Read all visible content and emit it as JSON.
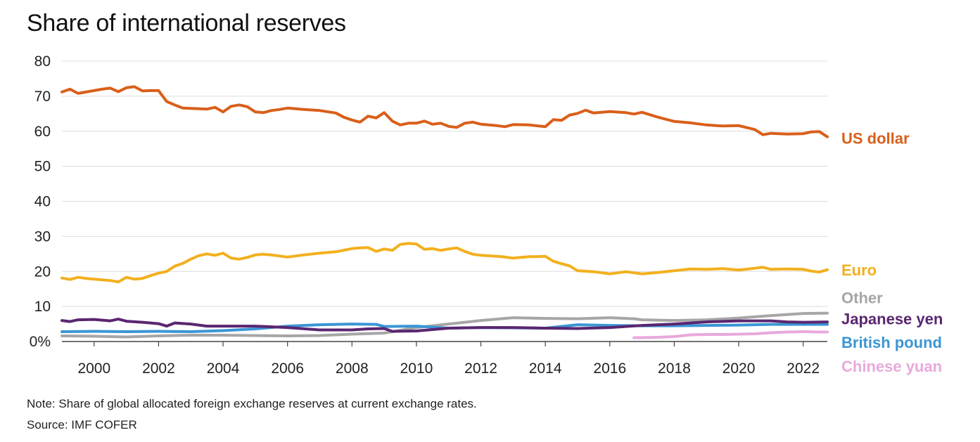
{
  "title": "Share of international reserves",
  "note": "Note: Share of global allocated foreign exchange reserves at current exchange rates.",
  "source": "Source: IMF COFER",
  "chart_data": {
    "type": "line",
    "title": "Share of international reserves",
    "xlabel": "",
    "ylabel": "",
    "xlim": [
      1999,
      2022.75
    ],
    "ylim": [
      0,
      80
    ],
    "grid": true,
    "x_ticks": [
      2000,
      2002,
      2004,
      2006,
      2008,
      2010,
      2012,
      2014,
      2016,
      2018,
      2020,
      2022
    ],
    "x_tick_labels": [
      "2000",
      "2002",
      "2004",
      "2006",
      "2008",
      "2010",
      "2012",
      "2014",
      "2016",
      "2018",
      "2020",
      "2022"
    ],
    "y_ticks": [
      0,
      10,
      20,
      30,
      40,
      50,
      60,
      70,
      80
    ],
    "y_tick_labels": [
      "0%",
      "10",
      "20",
      "30",
      "40",
      "50",
      "60",
      "70",
      "80"
    ],
    "legend": "direct labels at right end of lines",
    "series": [
      {
        "name": "US dollar",
        "color": "#d95f1a",
        "label_y": 58,
        "x": [
          1999,
          1999.25,
          1999.5,
          1999.75,
          2000,
          2000.25,
          2000.5,
          2000.75,
          2001,
          2001.25,
          2001.5,
          2001.75,
          2002,
          2002.25,
          2002.5,
          2002.75,
          2003,
          2003.5,
          2003.75,
          2004,
          2004.25,
          2004.5,
          2004.75,
          2005,
          2005.25,
          2005.5,
          2005.75,
          2006,
          2006.5,
          2007,
          2007.5,
          2007.75,
          2008,
          2008.25,
          2008.5,
          2008.75,
          2009,
          2009.25,
          2009.5,
          2009.75,
          2010,
          2010.25,
          2010.5,
          2010.75,
          2011,
          2011.25,
          2011.5,
          2011.75,
          2012,
          2012.5,
          2012.75,
          2013,
          2013.5,
          2014,
          2014.25,
          2014.5,
          2014.75,
          2015,
          2015.25,
          2015.5,
          2016,
          2016.5,
          2016.75,
          2017,
          2017.5,
          2018,
          2018.5,
          2019,
          2019.5,
          2020,
          2020.5,
          2020.75,
          2021,
          2021.5,
          2022,
          2022.25,
          2022.5,
          2022.75
        ],
        "values": [
          71.2,
          72.0,
          70.8,
          71.2,
          71.6,
          72.0,
          72.3,
          71.3,
          72.4,
          72.7,
          71.5,
          71.6,
          71.6,
          68.5,
          67.5,
          66.6,
          66.5,
          66.3,
          66.8,
          65.5,
          67.1,
          67.5,
          67.0,
          65.5,
          65.3,
          65.9,
          66.2,
          66.6,
          66.2,
          65.9,
          65.2,
          64.0,
          63.2,
          62.6,
          64.3,
          63.8,
          65.3,
          62.9,
          61.8,
          62.3,
          62.3,
          62.9,
          62.0,
          62.3,
          61.4,
          61.1,
          62.3,
          62.6,
          62.0,
          61.6,
          61.3,
          61.9,
          61.8,
          61.3,
          63.3,
          63.1,
          64.6,
          65.1,
          66.0,
          65.2,
          65.6,
          65.3,
          64.9,
          65.4,
          64.0,
          62.8,
          62.4,
          61.8,
          61.5,
          61.6,
          60.5,
          59.0,
          59.4,
          59.2,
          59.3,
          59.8,
          59.9,
          58.4
        ]
      },
      {
        "name": "Euro",
        "color": "#f2b01e",
        "label_y": 20.5,
        "x": [
          1999,
          1999.25,
          1999.5,
          1999.75,
          2000,
          2000.25,
          2000.5,
          2000.75,
          2001,
          2001.25,
          2001.5,
          2001.75,
          2002,
          2002.25,
          2002.5,
          2002.75,
          2003,
          2003.25,
          2003.5,
          2003.75,
          2004,
          2004.25,
          2004.5,
          2004.75,
          2005,
          2005.25,
          2005.5,
          2005.75,
          2006,
          2006.5,
          2007,
          2007.5,
          2008,
          2008.25,
          2008.5,
          2008.75,
          2009,
          2009.25,
          2009.5,
          2009.75,
          2010,
          2010.25,
          2010.5,
          2010.75,
          2011,
          2011.25,
          2011.5,
          2011.75,
          2012,
          2012.5,
          2012.75,
          2013,
          2013.5,
          2014,
          2014.25,
          2014.5,
          2014.75,
          2015,
          2015.5,
          2016,
          2016.5,
          2016.75,
          2017,
          2017.5,
          2018,
          2018.5,
          2019,
          2019.5,
          2020,
          2020.5,
          2020.75,
          2021,
          2021.5,
          2022,
          2022.25,
          2022.5,
          2022.75
        ],
        "values": [
          18.1,
          17.7,
          18.3,
          18.0,
          17.8,
          17.6,
          17.4,
          17.0,
          18.3,
          17.8,
          18.0,
          18.8,
          19.5,
          20.0,
          21.5,
          22.3,
          23.5,
          24.5,
          25.0,
          24.6,
          25.2,
          23.8,
          23.5,
          24.0,
          24.7,
          24.9,
          24.7,
          24.4,
          24.1,
          24.7,
          25.2,
          25.6,
          26.5,
          26.7,
          26.8,
          25.7,
          26.4,
          26.0,
          27.7,
          28.0,
          27.8,
          26.3,
          26.5,
          26.0,
          26.4,
          26.7,
          25.7,
          24.9,
          24.6,
          24.3,
          24.1,
          23.8,
          24.2,
          24.3,
          22.9,
          22.2,
          21.6,
          20.2,
          19.9,
          19.3,
          19.9,
          19.6,
          19.3,
          19.7,
          20.2,
          20.7,
          20.6,
          20.8,
          20.4,
          20.9,
          21.2,
          20.6,
          20.7,
          20.6,
          20.1,
          19.8,
          20.5
        ]
      },
      {
        "name": "Other",
        "color": "#a6a6a6",
        "label_y": 12.5,
        "x": [
          1999,
          2000,
          2001,
          2002,
          2003,
          2004,
          2005,
          2006,
          2007,
          2008,
          2009,
          2010,
          2011,
          2012,
          2013,
          2014,
          2015,
          2016,
          2016.75,
          2017,
          2018,
          2019,
          2020,
          2021,
          2022,
          2022.75
        ],
        "values": [
          1.6,
          1.5,
          1.3,
          1.6,
          1.8,
          1.8,
          1.7,
          1.6,
          1.7,
          2.1,
          2.4,
          4.0,
          5.0,
          6.0,
          6.8,
          6.6,
          6.5,
          6.8,
          6.5,
          6.2,
          6.0,
          6.2,
          6.7,
          7.4,
          8.0,
          8.1
        ]
      },
      {
        "name": "Japanese yen",
        "color": "#5a2670",
        "label_y": 6.5,
        "x": [
          1999,
          1999.25,
          1999.5,
          2000,
          2000.5,
          2000.75,
          2001,
          2001.5,
          2002,
          2002.25,
          2002.5,
          2003,
          2003.5,
          2004,
          2005,
          2006,
          2007,
          2008,
          2008.5,
          2009,
          2009.25,
          2010,
          2011,
          2012,
          2013,
          2014,
          2015,
          2016,
          2017,
          2018,
          2019,
          2020,
          2021,
          2021.5,
          2022,
          2022.75
        ],
        "values": [
          6.0,
          5.7,
          6.2,
          6.3,
          5.9,
          6.4,
          5.8,
          5.5,
          5.1,
          4.4,
          5.3,
          5.0,
          4.4,
          4.4,
          4.4,
          4.0,
          3.3,
          3.3,
          3.6,
          3.7,
          2.9,
          3.0,
          3.8,
          4.0,
          4.0,
          3.8,
          3.7,
          4.0,
          4.6,
          5.0,
          5.6,
          5.9,
          5.9,
          5.6,
          5.5,
          5.6
        ]
      },
      {
        "name": "British pound",
        "color": "#3a96d4",
        "label_y": -0.2,
        "x": [
          1999,
          2000,
          2001,
          2002,
          2003,
          2004,
          2005,
          2006,
          2007,
          2008,
          2008.75,
          2009,
          2010,
          2011,
          2012,
          2013,
          2014,
          2015,
          2016,
          2017,
          2018,
          2019,
          2020,
          2021,
          2022,
          2022.75
        ],
        "values": [
          2.8,
          2.9,
          2.8,
          2.9,
          2.8,
          3.1,
          3.6,
          4.4,
          4.8,
          5.0,
          4.9,
          4.3,
          4.4,
          3.8,
          4.0,
          3.9,
          3.8,
          4.8,
          4.6,
          4.5,
          4.5,
          4.6,
          4.7,
          4.9,
          4.9,
          4.9
        ]
      },
      {
        "name": "Chinese yuan",
        "color": "#e8a9dc",
        "label_y": -7,
        "x": [
          2016.75,
          2017,
          2017.5,
          2018,
          2018.5,
          2019,
          2019.5,
          2020,
          2020.5,
          2021,
          2021.5,
          2022,
          2022.5,
          2022.75
        ],
        "values": [
          1.1,
          1.1,
          1.2,
          1.4,
          1.9,
          2.0,
          2.0,
          2.1,
          2.2,
          2.5,
          2.7,
          2.8,
          2.7,
          2.7
        ]
      }
    ]
  }
}
